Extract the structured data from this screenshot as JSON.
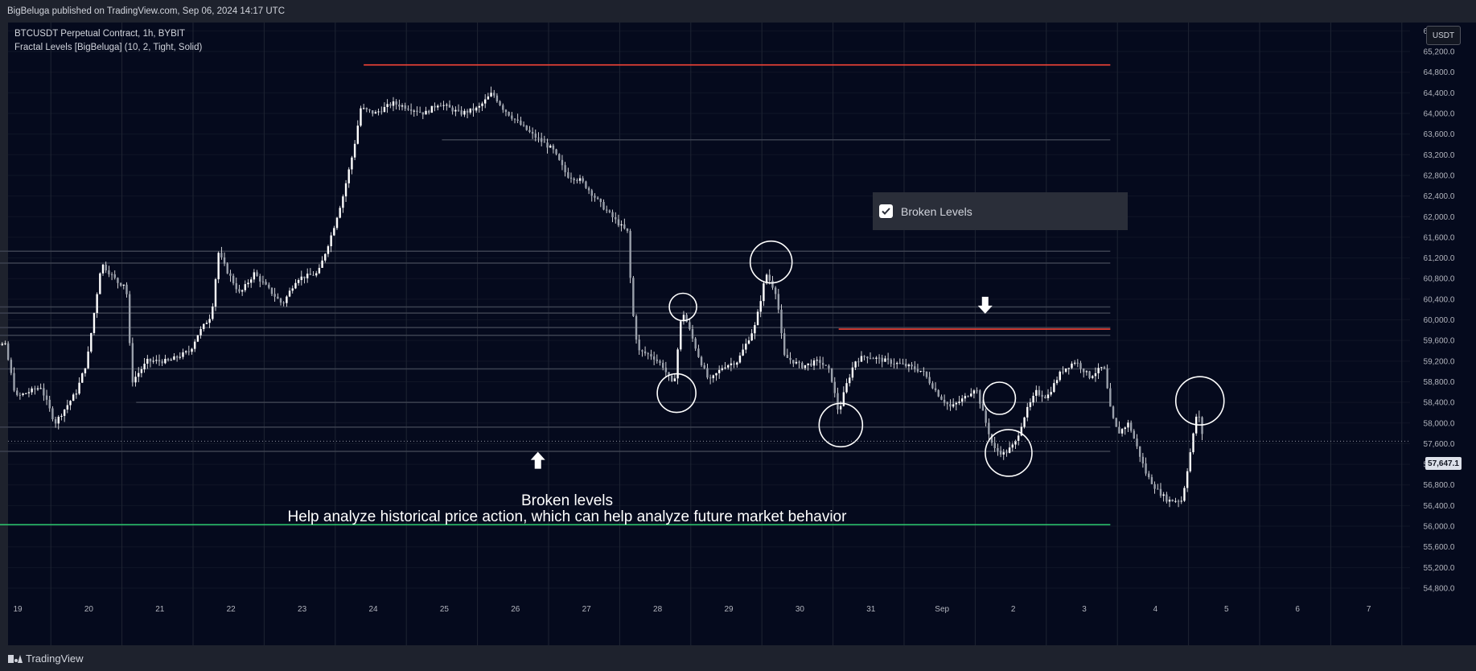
{
  "header": {
    "publisher_text": "BigBeluga published on TradingView.com, Sep 06, 2024 14:17 UTC"
  },
  "legend": {
    "symbol": "BTCUSDT Perpetual Contract, 1h, BYBIT",
    "indicator": "Fractal Levels [BigBeluga] (10, 2, Tight, Solid)"
  },
  "currency_button": "USDT",
  "toggle": {
    "label": "Broken Levels",
    "checked": true
  },
  "annotation": {
    "title": "Broken levels",
    "text": "Help analyze historical price action, which can help analyze future market behavior"
  },
  "footer": {
    "logo_text": "TradingView"
  },
  "colors": {
    "background": "#050a1d",
    "grid": "#1e2433",
    "candle": "#ffffff",
    "resistance": "#f44336",
    "support": "#2ecc71",
    "broken_level": "#3c4150"
  },
  "chart_data": {
    "type": "candlestick",
    "ylim": [
      54600,
      65700
    ],
    "y_ticks": [
      54800,
      55200,
      55600,
      56000,
      56400,
      56800,
      57200,
      57600,
      58000,
      58400,
      58800,
      59200,
      59600,
      60000,
      60400,
      60800,
      61200,
      61600,
      62000,
      62400,
      62800,
      63200,
      63600,
      64000,
      64400,
      64800,
      65200,
      65600
    ],
    "y_tick_labels": [
      "54,800.0",
      "55,200.0",
      "55,600.0",
      "56,000.0",
      "56,400.0",
      "56,800.0",
      "57,200.0",
      "57,600.0",
      "58,000.0",
      "58,400.0",
      "58,800.0",
      "59,200.0",
      "59,600.0",
      "60,000.0",
      "60,400.0",
      "60,800.0",
      "61,200.0",
      "61,600.0",
      "62,000.0",
      "62,400.0",
      "62,800.0",
      "63,200.0",
      "63,600.0",
      "64,000.0",
      "64,400.0",
      "64,800.0",
      "65,200.0",
      "65,600.0"
    ],
    "x_tick_labels": [
      "19",
      "20",
      "21",
      "22",
      "23",
      "24",
      "25",
      "26",
      "27",
      "28",
      "29",
      "30",
      "31",
      "Sep",
      "2",
      "3",
      "4",
      "5",
      "6",
      "7"
    ],
    "x_range_days": [
      18.4,
      7.66
    ],
    "last_price": 57647.1,
    "last_price_label": "57,647.1",
    "anchors": [
      [
        18.4,
        60200
      ],
      [
        18.5,
        59700
      ],
      [
        18.9,
        59500
      ],
      [
        19.05,
        58500
      ],
      [
        19.4,
        58700
      ],
      [
        19.6,
        58000
      ],
      [
        19.9,
        58600
      ],
      [
        20.05,
        59200
      ],
      [
        20.2,
        60600
      ],
      [
        20.25,
        61100
      ],
      [
        20.5,
        60700
      ],
      [
        20.6,
        60700
      ],
      [
        20.68,
        58800
      ],
      [
        20.9,
        59200
      ],
      [
        21.2,
        59200
      ],
      [
        21.5,
        59400
      ],
      [
        21.6,
        59700
      ],
      [
        21.8,
        60100
      ],
      [
        21.9,
        61300
      ],
      [
        22.0,
        61000
      ],
      [
        22.2,
        60500
      ],
      [
        22.4,
        60900
      ],
      [
        22.6,
        60600
      ],
      [
        22.8,
        60300
      ],
      [
        23.0,
        60800
      ],
      [
        23.3,
        60900
      ],
      [
        23.5,
        61700
      ],
      [
        23.65,
        62400
      ],
      [
        23.8,
        63300
      ],
      [
        23.9,
        64100
      ],
      [
        24.1,
        64000
      ],
      [
        24.35,
        64200
      ],
      [
        24.6,
        64100
      ],
      [
        24.8,
        64000
      ],
      [
        25.0,
        64200
      ],
      [
        25.3,
        64000
      ],
      [
        25.55,
        64100
      ],
      [
        25.75,
        64400
      ],
      [
        25.9,
        64100
      ],
      [
        26.05,
        63900
      ],
      [
        26.3,
        63600
      ],
      [
        26.6,
        63300
      ],
      [
        26.8,
        62800
      ],
      [
        27.0,
        62700
      ],
      [
        27.3,
        62200
      ],
      [
        27.5,
        61900
      ],
      [
        27.65,
        61700
      ],
      [
        27.72,
        60200
      ],
      [
        27.8,
        59400
      ],
      [
        28.0,
        59300
      ],
      [
        28.15,
        59100
      ],
      [
        28.3,
        58700
      ],
      [
        28.42,
        60200
      ],
      [
        28.55,
        59700
      ],
      [
        28.65,
        59300
      ],
      [
        28.8,
        58800
      ],
      [
        29.0,
        59100
      ],
      [
        29.2,
        59200
      ],
      [
        29.45,
        59900
      ],
      [
        29.6,
        60900
      ],
      [
        29.75,
        60500
      ],
      [
        29.85,
        59300
      ],
      [
        30.1,
        59100
      ],
      [
        30.35,
        59200
      ],
      [
        30.5,
        59000
      ],
      [
        30.62,
        58200
      ],
      [
        30.72,
        58700
      ],
      [
        30.85,
        59200
      ],
      [
        31.0,
        59300
      ],
      [
        31.3,
        59200
      ],
      [
        31.6,
        59100
      ],
      [
        31.8,
        59000
      ],
      [
        32.05,
        58500
      ],
      [
        32.2,
        58300
      ],
      [
        32.4,
        58500
      ],
      [
        32.55,
        58700
      ],
      [
        32.65,
        58200
      ],
      [
        32.8,
        57500
      ],
      [
        32.95,
        57400
      ],
      [
        33.1,
        57600
      ],
      [
        33.25,
        58200
      ],
      [
        33.4,
        58600
      ],
      [
        33.55,
        58500
      ],
      [
        33.75,
        59000
      ],
      [
        33.95,
        59200
      ],
      [
        34.15,
        58900
      ],
      [
        34.35,
        59100
      ],
      [
        34.45,
        58200
      ],
      [
        34.55,
        57800
      ],
      [
        34.7,
        58000
      ],
      [
        34.8,
        57600
      ],
      [
        34.95,
        57000
      ],
      [
        35.1,
        56700
      ],
      [
        35.25,
        56500
      ],
      [
        35.45,
        56500
      ],
      [
        35.6,
        57700
      ],
      [
        35.67,
        58300
      ],
      [
        35.72,
        57800
      ]
    ],
    "levels": [
      {
        "type": "resistance",
        "price": 64940,
        "x_start": 23.9,
        "x_end": 34.4
      },
      {
        "type": "resistance",
        "price": 59820,
        "x_start": 30.58,
        "x_end": 34.4
      },
      {
        "type": "support",
        "price": 56030,
        "x_start": 18.4,
        "x_end": 34.4
      },
      {
        "type": "broken",
        "price": 63490,
        "x_start": 25.0,
        "x_end": 34.4
      },
      {
        "type": "broken",
        "price": 61330,
        "x_start": 18.4,
        "x_end": 34.4
      },
      {
        "type": "broken",
        "price": 61100,
        "x_start": 18.4,
        "x_end": 34.4
      },
      {
        "type": "broken",
        "price": 60250,
        "x_start": 18.4,
        "x_end": 34.4
      },
      {
        "type": "broken",
        "price": 60130,
        "x_start": 18.4,
        "x_end": 34.4
      },
      {
        "type": "broken",
        "price": 59850,
        "x_start": 18.4,
        "x_end": 34.4
      },
      {
        "type": "broken",
        "price": 59700,
        "x_start": 18.4,
        "x_end": 34.4
      },
      {
        "type": "broken",
        "price": 59050,
        "x_start": 18.4,
        "x_end": 34.4
      },
      {
        "type": "broken",
        "price": 58400,
        "x_start": 20.7,
        "x_end": 34.4
      },
      {
        "type": "broken",
        "price": 57920,
        "x_start": 18.4,
        "x_end": 34.4
      },
      {
        "type": "broken",
        "price": 57450,
        "x_start": 18.4,
        "x_end": 34.4
      }
    ],
    "highlight_circles": [
      {
        "x": 28.39,
        "price": 60250,
        "r": 17
      },
      {
        "x": 28.3,
        "price": 58580,
        "r": 24
      },
      {
        "x": 29.63,
        "price": 61120,
        "r": 26
      },
      {
        "x": 30.61,
        "price": 57960,
        "r": 27
      },
      {
        "x": 32.84,
        "price": 58480,
        "r": 20
      },
      {
        "x": 32.97,
        "price": 57420,
        "r": 29
      },
      {
        "x": 35.66,
        "price": 58430,
        "r": 30
      }
    ],
    "arrows": [
      {
        "direction": "up",
        "x": 26.35,
        "price": 57270
      },
      {
        "direction": "down",
        "x": 32.64,
        "price": 60290
      }
    ]
  }
}
